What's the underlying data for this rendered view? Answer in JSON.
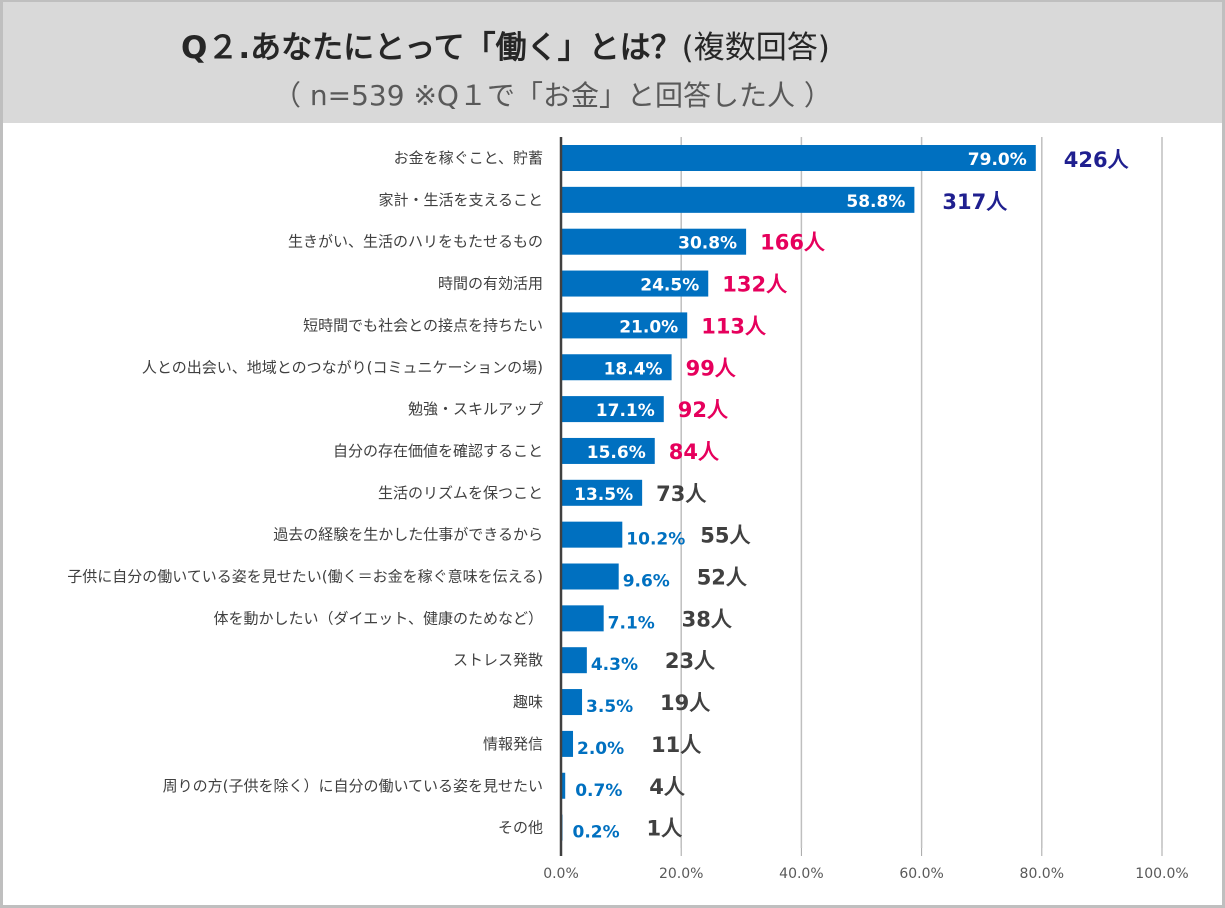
{
  "header": {
    "title_main": "Q２.あなたにとって「働く」とは？",
    "title_paren": "(複数回答)",
    "subtitle": "（ n=539 ※Q１で「お金」と回答した人 ）"
  },
  "colors": {
    "bar": "#0070c0",
    "count_top": "#1f1f8f",
    "count_mid": "#e6005c",
    "count_low": "#404040",
    "header_bg": "#d9d9d9"
  },
  "chart_data": {
    "type": "bar",
    "orientation": "horizontal",
    "title": "Q２.あなたにとって「働く」とは？(複数回答)",
    "subtitle": "（ n=539 ※Q１で「お金」と回答した人 ）",
    "xlabel": "",
    "ylabel": "",
    "xlim": [
      0,
      100
    ],
    "grid": true,
    "legend": "none",
    "x_ticks": [
      "0.0%",
      "20.0%",
      "40.0%",
      "60.0%",
      "80.0%",
      "100.0%"
    ],
    "categories": [
      "お金を稼ぐこと、貯蓄",
      "家計・生活を支えること",
      "生きがい、生活のハリをもたせるもの",
      "時間の有効活用",
      "短時間でも社会との接点を持ちたい",
      "人との出会い、地域とのつながり(コミュニケーションの場)",
      "勉強・スキルアップ",
      "自分の存在価値を確認すること",
      "生活のリズムを保つこと",
      "過去の経験を生かした仕事ができるから",
      "子供に自分の働いている姿を見せたい(働く＝お金を稼ぐ意味を伝える)",
      "体を動かしたい（ダイエット、健康のためなど）",
      "ストレス発散",
      "趣味",
      "情報発信",
      "周りの方(子供を除く）に自分の働いている姿を見せたい",
      "その他"
    ],
    "values": [
      79.0,
      58.8,
      30.8,
      24.5,
      21.0,
      18.4,
      17.1,
      15.6,
      13.5,
      10.2,
      9.6,
      7.1,
      4.3,
      3.5,
      2.0,
      0.7,
      0.2
    ],
    "value_labels": [
      "79.0%",
      "58.8%",
      "30.8%",
      "24.5%",
      "21.0%",
      "18.4%",
      "17.1%",
      "15.6%",
      "13.5%",
      "10.2%",
      "9.6%",
      "7.1%",
      "4.3%",
      "3.5%",
      "2.0%",
      "0.7%",
      "0.2%"
    ],
    "counts": [
      426,
      317,
      166,
      132,
      113,
      99,
      92,
      84,
      73,
      55,
      52,
      38,
      23,
      19,
      11,
      4,
      1
    ],
    "count_labels": [
      "426人",
      "317人",
      "166人",
      "132人",
      "113人",
      "99人",
      "92人",
      "84人",
      "73人",
      "55人",
      "52人",
      "38人",
      "23人",
      "19人",
      "11人",
      "4人",
      "1人"
    ],
    "count_color_groups": [
      "top",
      "top",
      "mid",
      "mid",
      "mid",
      "mid",
      "mid",
      "mid",
      "low",
      "low",
      "low",
      "low",
      "low",
      "low",
      "low",
      "low",
      "low"
    ]
  }
}
